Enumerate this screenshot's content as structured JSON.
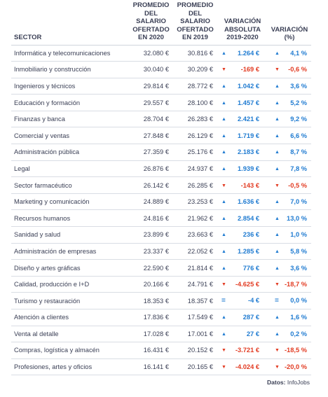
{
  "table": {
    "headers": {
      "sector": "SECTOR",
      "salary_2020": [
        "PROMEDIO",
        "DEL SALARIO",
        "OFERTADO",
        "EN 2020"
      ],
      "salary_2019": [
        "PROMEDIO",
        "DEL SALARIO",
        "OFERTADO",
        "EN 2019"
      ],
      "abs_change": [
        "VARIACIÓN",
        "ABSOLUTA",
        "2019-2020"
      ],
      "pct_change": [
        "VARIACIÓN",
        "(%)"
      ]
    },
    "rows": [
      {
        "sector": "Informática y telecomunicaciones",
        "s2020": "32.080 €",
        "s2019": "30.816 €",
        "abs": "1.264 €",
        "pct": "4,1 %",
        "trend": "up"
      },
      {
        "sector": "Inmobiliario y construcción",
        "s2020": "30.040 €",
        "s2019": "30.209 €",
        "abs": "-169 €",
        "pct": "-0,6 %",
        "trend": "down"
      },
      {
        "sector": "Ingenieros y técnicos",
        "s2020": "29.814 €",
        "s2019": "28.772 €",
        "abs": "1.042 €",
        "pct": "3,6 %",
        "trend": "up"
      },
      {
        "sector": "Educación y formación",
        "s2020": "29.557 €",
        "s2019": "28.100 €",
        "abs": "1.457 €",
        "pct": "5,2 %",
        "trend": "up"
      },
      {
        "sector": "Finanzas y banca",
        "s2020": "28.704 €",
        "s2019": "26.283 €",
        "abs": "2.421 €",
        "pct": "9,2 %",
        "trend": "up"
      },
      {
        "sector": "Comercial y ventas",
        "s2020": "27.848 €",
        "s2019": "26.129 €",
        "abs": "1.719 €",
        "pct": "6,6 %",
        "trend": "up"
      },
      {
        "sector": "Administración pública",
        "s2020": "27.359 €",
        "s2019": "25.176 €",
        "abs": "2.183 €",
        "pct": "8,7 %",
        "trend": "up"
      },
      {
        "sector": "Legal",
        "s2020": "26.876 €",
        "s2019": "24.937 €",
        "abs": "1.939 €",
        "pct": "7,8 %",
        "trend": "up"
      },
      {
        "sector": "Sector farmacéutico",
        "s2020": "26.142 €",
        "s2019": "26.285 €",
        "abs": "-143 €",
        "pct": "-0,5 %",
        "trend": "down"
      },
      {
        "sector": "Marketing y comunicación",
        "s2020": "24.889 €",
        "s2019": "23.253 €",
        "abs": "1.636 €",
        "pct": "7,0 %",
        "trend": "up"
      },
      {
        "sector": "Recursos humanos",
        "s2020": "24.816 €",
        "s2019": "21.962 €",
        "abs": "2.854 €",
        "pct": "13,0 %",
        "trend": "up"
      },
      {
        "sector": "Sanidad y salud",
        "s2020": "23.899 €",
        "s2019": "23.663 €",
        "abs": "236 €",
        "pct": "1,0 %",
        "trend": "up"
      },
      {
        "sector": "Administración de empresas",
        "s2020": "23.337 €",
        "s2019": "22.052 €",
        "abs": "1.285 €",
        "pct": "5,8 %",
        "trend": "up"
      },
      {
        "sector": "Diseño y artes gráficas",
        "s2020": "22.590 €",
        "s2019": "21.814 €",
        "abs": "776 €",
        "pct": "3,6 %",
        "trend": "up"
      },
      {
        "sector": "Calidad, producción e I+D",
        "s2020": "20.166 €",
        "s2019": "24.791 €",
        "abs": "-4.625 €",
        "pct": "-18,7 %",
        "trend": "down"
      },
      {
        "sector": "Turismo y restauración",
        "s2020": "18.353 €",
        "s2019": "18.357 €",
        "abs": "-4 €",
        "pct": "0,0 %",
        "trend": "flat"
      },
      {
        "sector": "Atención a clientes",
        "s2020": "17.836 €",
        "s2019": "17.549 €",
        "abs": "287 €",
        "pct": "1,6 %",
        "trend": "up"
      },
      {
        "sector": "Venta al detalle",
        "s2020": "17.028 €",
        "s2019": "17.001 €",
        "abs": "27 €",
        "pct": "0,2 %",
        "trend": "up"
      },
      {
        "sector": "Compras, logística y almacén",
        "s2020": "16.431 €",
        "s2019": "20.152 €",
        "abs": "-3.721 €",
        "pct": "-18,5 %",
        "trend": "down"
      },
      {
        "sector": "Profesiones, artes y oficios",
        "s2020": "16.141 €",
        "s2019": "20.165 €",
        "abs": "-4.024 €",
        "pct": "-20,0 %",
        "trend": "down"
      }
    ]
  },
  "source": {
    "label": "Datos:",
    "value": "InfoJobs"
  },
  "colors": {
    "up": "#1f7bd1",
    "down": "#e23b22",
    "text": "#3a3f55"
  }
}
